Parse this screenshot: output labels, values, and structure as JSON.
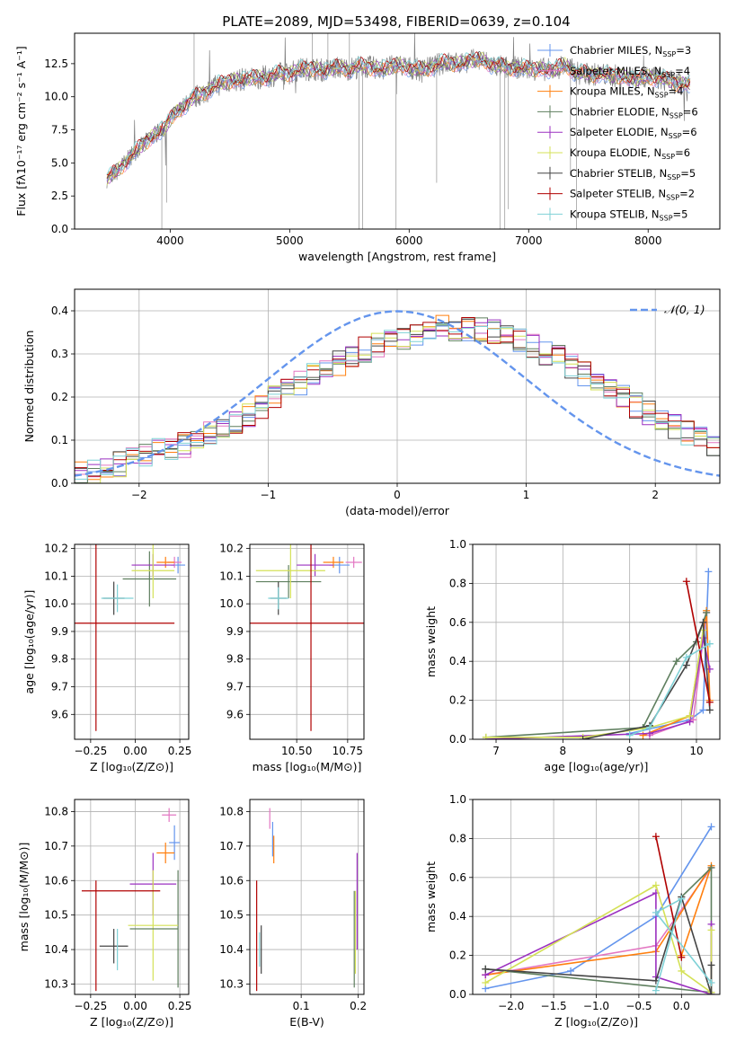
{
  "chart_data": [
    {
      "id": "spectrum",
      "type": "line",
      "title": "PLATE=2089, MJD=53498, FIBERID=0639, z=0.104",
      "xlabel": "wavelength [Angstrom, rest frame]",
      "ylabel": "Flux [fλ10⁻¹⁷ erg cm⁻² s⁻¹ A⁻¹]",
      "xlim": [
        3200,
        8600
      ],
      "ylim": [
        0,
        14.8
      ],
      "xticks": [
        4000,
        5000,
        6000,
        7000,
        8000
      ],
      "yticks": [
        0.0,
        2.5,
        5.0,
        7.5,
        10.0,
        12.5
      ],
      "legend_position": "right",
      "observed": {
        "color": "#808080",
        "x": [
          3470,
          3550,
          3650,
          3750,
          3850,
          3950,
          4000,
          4100,
          4200,
          4300,
          4400,
          4500,
          4600,
          4700,
          4800,
          4900,
          5000,
          5100,
          5200,
          5300,
          5400,
          5500,
          5600,
          5700,
          5800,
          5900,
          6000,
          6100,
          6200,
          6300,
          6400,
          6500,
          6600,
          6700,
          6800,
          6900,
          7000,
          7100,
          7200,
          7300,
          7400,
          7500,
          7600,
          7700,
          7800,
          7900,
          8000,
          8100,
          8200,
          8350
        ],
        "y": [
          3.8,
          4.3,
          5.3,
          6.2,
          7.0,
          7.6,
          8.3,
          9.2,
          9.9,
          10.4,
          10.9,
          11.2,
          11.3,
          11.4,
          11.5,
          11.7,
          11.8,
          12.1,
          12.1,
          12.0,
          12.2,
          12.1,
          12.3,
          12.2,
          12.1,
          12.4,
          12.2,
          12.0,
          12.3,
          12.6,
          12.5,
          12.7,
          12.8,
          12.4,
          12.2,
          12.2,
          12.1,
          12.1,
          12.0,
          12.4,
          11.8,
          11.7,
          11.7,
          11.6,
          11.5,
          11.3,
          11.5,
          11.4,
          11.1,
          10.9
        ]
      },
      "series": [
        {
          "name": "Chabrier MILES, N_SSP=3",
          "color": "#6495ed"
        },
        {
          "name": "Salpeter MILES, N_SSP=4",
          "color": "#e377c2"
        },
        {
          "name": "Kroupa MILES, N_SSP=4",
          "color": "#ff7f0e"
        },
        {
          "name": "Chabrier ELODIE, N_SSP=6",
          "color": "#5f7f5f"
        },
        {
          "name": "Salpeter ELODIE, N_SSP=6",
          "color": "#9b30c0"
        },
        {
          "name": "Kroupa ELODIE, N_SSP=6",
          "color": "#d4e157"
        },
        {
          "name": "Chabrier STELIB, N_SSP=5",
          "color": "#444444"
        },
        {
          "name": "Salpeter STELIB, N_SSP=2",
          "color": "#b00000"
        },
        {
          "name": "Kroupa STELIB, N_SSP=5",
          "color": "#7fd1d6"
        }
      ]
    },
    {
      "id": "residuals",
      "type": "line",
      "xlabel": "(data-model)/error",
      "ylabel": "Normed distribution",
      "xlim": [
        -2.5,
        2.5
      ],
      "ylim": [
        0,
        0.45
      ],
      "xticks": [
        -2,
        -1,
        0,
        1,
        2
      ],
      "yticks": [
        0.0,
        0.1,
        0.2,
        0.3,
        0.4
      ],
      "legend_position": "top-right",
      "gaussian": {
        "name": "𝒩(0, 1)",
        "color": "#6495ed",
        "mean": 0,
        "sigma": 1
      },
      "histogram": {
        "bin_edges_start": -2.5,
        "bin_width": 0.1,
        "base": [
          0.025,
          0.03,
          0.035,
          0.045,
          0.055,
          0.065,
          0.075,
          0.08,
          0.09,
          0.1,
          0.115,
          0.13,
          0.145,
          0.16,
          0.18,
          0.2,
          0.215,
          0.23,
          0.25,
          0.265,
          0.28,
          0.3,
          0.31,
          0.32,
          0.33,
          0.34,
          0.35,
          0.355,
          0.36,
          0.36,
          0.36,
          0.355,
          0.35,
          0.34,
          0.33,
          0.32,
          0.3,
          0.29,
          0.27,
          0.255,
          0.24,
          0.22,
          0.2,
          0.18,
          0.165,
          0.15,
          0.13,
          0.115,
          0.1,
          0.09
        ]
      }
    },
    {
      "id": "age-vs-Z",
      "type": "scatter",
      "xlabel": "Z [log₁₀(Z/Z⊙)]",
      "ylabel": "age  [log₁₀(age/yr)]",
      "xlim": [
        -0.34,
        0.3
      ],
      "ylim": [
        9.51,
        10.215
      ],
      "xticks": [
        -0.25,
        0.0,
        0.25
      ],
      "xticklabels": [
        "−0.25",
        "0.00",
        "0.25"
      ],
      "yticks": [
        9.6,
        9.7,
        9.8,
        9.9,
        10.0,
        10.1,
        10.2
      ],
      "points": [
        {
          "series": "Chabrier MILES",
          "x": 0.24,
          "y": 10.14,
          "xerr": 0.04,
          "yerr": 0.03
        },
        {
          "series": "Salpeter MILES",
          "x": 0.22,
          "y": 10.15,
          "xerr": 0.04,
          "yerr": 0.02
        },
        {
          "series": "Kroupa MILES",
          "x": 0.17,
          "y": 10.15,
          "xerr": 0.05,
          "yerr": 0.02
        },
        {
          "series": "Chabrier ELODIE",
          "x": 0.08,
          "y": 10.09,
          "xerr": 0.15,
          "yerr": 0.1
        },
        {
          "series": "Salpeter ELODIE",
          "x": 0.1,
          "y": 10.14,
          "xerr": 0.12,
          "yerr": 0.04
        },
        {
          "series": "Kroupa ELODIE",
          "x": 0.1,
          "y": 10.12,
          "xerr": 0.12,
          "yerr": 0.1
        },
        {
          "series": "Chabrier STELIB",
          "x": -0.12,
          "y": 10.02,
          "xerr": 0.06,
          "yerr": 0.06
        },
        {
          "series": "Salpeter STELIB",
          "x": -0.22,
          "y": 9.93,
          "xerr": 0.44,
          "yerr": 0.39
        },
        {
          "series": "Kroupa STELIB",
          "x": -0.1,
          "y": 10.02,
          "xerr": 0.09,
          "yerr": 0.05
        }
      ]
    },
    {
      "id": "age-vs-mass",
      "type": "scatter",
      "xlabel": "mass [log₁₀(M/M⊙)]",
      "xlim": [
        10.27,
        10.83
      ],
      "ylim": [
        9.51,
        10.215
      ],
      "xticks": [
        10.5,
        10.75
      ],
      "xticklabels": [
        "10.50",
        "10.75"
      ],
      "yticks": [
        9.6,
        9.7,
        9.8,
        9.9,
        10.0,
        10.1,
        10.2
      ],
      "points": [
        {
          "series": "Chabrier MILES",
          "x": 10.71,
          "y": 10.14,
          "xerr": 0.05,
          "yerr": 0.03
        },
        {
          "series": "Salpeter MILES",
          "x": 10.78,
          "y": 10.15,
          "xerr": 0.04,
          "yerr": 0.02
        },
        {
          "series": "Kroupa MILES",
          "x": 10.68,
          "y": 10.15,
          "xerr": 0.05,
          "yerr": 0.02
        },
        {
          "series": "Chabrier ELODIE",
          "x": 10.46,
          "y": 10.08,
          "xerr": 0.16,
          "yerr": 0.06
        },
        {
          "series": "Salpeter ELODIE",
          "x": 10.59,
          "y": 10.14,
          "xerr": 0.09,
          "yerr": 0.04
        },
        {
          "series": "Kroupa ELODIE",
          "x": 10.47,
          "y": 10.12,
          "xerr": 0.17,
          "yerr": 0.1
        },
        {
          "series": "Chabrier STELIB",
          "x": 10.41,
          "y": 10.02,
          "xerr": 0.04,
          "yerr": 0.06
        },
        {
          "series": "Salpeter STELIB",
          "x": 10.57,
          "y": 9.93,
          "xerr": 0.31,
          "yerr": 0.39
        },
        {
          "series": "Kroupa STELIB",
          "x": 10.41,
          "y": 10.02,
          "xerr": 0.05,
          "yerr": 0.04
        }
      ]
    },
    {
      "id": "weight-vs-age",
      "type": "line",
      "xlabel": "age  [log₁₀(age/yr)]",
      "ylabel": "mass weight",
      "xlim": [
        6.65,
        10.35
      ],
      "ylim": [
        0,
        1.0
      ],
      "xticks": [
        7,
        8,
        9,
        10
      ],
      "yticks": [
        0.0,
        0.2,
        0.4,
        0.6,
        0.8,
        1.0
      ],
      "series": [
        {
          "name": "Chabrier MILES",
          "x": [
            9.0,
            9.9,
            10.1,
            10.18
          ],
          "y": [
            0.03,
            0.1,
            0.15,
            0.86
          ]
        },
        {
          "name": "Salpeter MILES",
          "x": [
            9.3,
            9.95,
            10.15
          ],
          "y": [
            0.02,
            0.1,
            0.65
          ]
        },
        {
          "name": "Kroupa MILES",
          "x": [
            9.2,
            9.9,
            10.15,
            10.2
          ],
          "y": [
            0.02,
            0.12,
            0.66,
            0.2
          ]
        },
        {
          "name": "Chabrier ELODIE",
          "x": [
            6.85,
            9.2,
            9.7,
            10.0,
            10.15
          ],
          "y": [
            0.01,
            0.06,
            0.4,
            0.5,
            0.65
          ]
        },
        {
          "name": "Salpeter ELODIE",
          "x": [
            6.85,
            9.3,
            9.9,
            10.1,
            10.2
          ],
          "y": [
            0.0,
            0.03,
            0.09,
            0.52,
            0.36
          ]
        },
        {
          "name": "Kroupa ELODIE",
          "x": [
            6.85,
            8.3,
            9.3,
            9.9,
            10.1
          ],
          "y": [
            0.01,
            0.01,
            0.06,
            0.12,
            0.56
          ]
        },
        {
          "name": "Chabrier STELIB",
          "x": [
            8.3,
            9.3,
            9.85,
            10.1,
            10.2
          ],
          "y": [
            0.0,
            0.07,
            0.38,
            0.6,
            0.15
          ]
        },
        {
          "name": "Salpeter STELIB",
          "x": [
            9.85,
            10.2
          ],
          "y": [
            0.81,
            0.19
          ]
        },
        {
          "name": "Kroupa STELIB",
          "x": [
            9.0,
            9.3,
            9.85,
            10.2
          ],
          "y": [
            0.02,
            0.06,
            0.42,
            0.49
          ]
        }
      ]
    },
    {
      "id": "mass-vs-Z",
      "type": "scatter",
      "xlabel": "Z [log₁₀(Z/Z⊙)]",
      "ylabel": "mass [log₁₀(M/M⊙)]",
      "xlim": [
        -0.34,
        0.3
      ],
      "ylim": [
        10.27,
        10.835
      ],
      "xticks": [
        -0.25,
        0.0,
        0.25
      ],
      "xticklabels": [
        "−0.25",
        "0.00",
        "0.25"
      ],
      "yticks": [
        10.3,
        10.4,
        10.5,
        10.6,
        10.7,
        10.8
      ],
      "points": [
        {
          "series": "Chabrier MILES",
          "x": 0.22,
          "y": 10.71,
          "xerr": 0.03,
          "yerr": 0.05
        },
        {
          "series": "Salpeter MILES",
          "x": 0.19,
          "y": 10.79,
          "xerr": 0.04,
          "yerr": 0.02
        },
        {
          "series": "Kroupa MILES",
          "x": 0.17,
          "y": 10.68,
          "xerr": 0.05,
          "yerr": 0.03
        },
        {
          "series": "Chabrier ELODIE",
          "x": 0.24,
          "y": 10.46,
          "xerr": 0.0,
          "yerr": 0.17
        },
        {
          "series": "Salpeter ELODIE",
          "x": 0.1,
          "y": 10.59,
          "xerr": 0.13,
          "yerr": 0.09
        },
        {
          "series": "Kroupa ELODIE",
          "x": 0.1,
          "y": 10.47,
          "xerr": 0.14,
          "yerr": 0.16
        },
        {
          "series": "Chabrier STELIB",
          "x": -0.12,
          "y": 10.41,
          "xerr": 0.08,
          "yerr": 0.05
        },
        {
          "series": "Salpeter STELIB",
          "x": -0.08,
          "y": 10.57,
          "xerr": 0.22,
          "yerr": 0.0
        },
        {
          "series": "Kroupa STELIB",
          "x": -0.1,
          "y": 10.4,
          "xerr": 0.0,
          "yerr": 0.06
        }
      ],
      "extra_lines": [
        {
          "series": "Salpeter STELIB",
          "x": -0.22,
          "ylo": 10.28,
          "yhi": 10.6
        },
        {
          "series": "Chabrier ELODIE",
          "xlo": -0.03,
          "xhi": 0.24,
          "y": 10.46
        }
      ]
    },
    {
      "id": "mass-vs-ebv",
      "type": "scatter",
      "xlabel": "E(B-V)",
      "xlim": [
        0.01,
        0.21
      ],
      "ylim": [
        10.27,
        10.835
      ],
      "xticks": [
        0.1,
        0.2
      ],
      "xticklabels": [
        "0.1",
        "0.2"
      ],
      "yticks": [
        10.3,
        10.4,
        10.5,
        10.6,
        10.7,
        10.8
      ],
      "points": [
        {
          "series": "Chabrier MILES",
          "x": 0.05,
          "y": 10.72,
          "xerr": 0,
          "yerr": 0.05
        },
        {
          "series": "Salpeter MILES",
          "x": 0.045,
          "y": 10.78,
          "xerr": 0,
          "yerr": 0.03
        },
        {
          "series": "Kroupa MILES",
          "x": 0.052,
          "y": 10.69,
          "xerr": 0,
          "yerr": 0.04
        },
        {
          "series": "Chabrier ELODIE",
          "x": 0.193,
          "y": 10.43,
          "xerr": 0,
          "yerr": 0.14
        },
        {
          "series": "Salpeter ELODIE",
          "x": 0.198,
          "y": 10.54,
          "xerr": 0,
          "yerr": 0.14
        },
        {
          "series": "Kroupa ELODIE",
          "x": 0.195,
          "y": 10.45,
          "xerr": 0,
          "yerr": 0.12
        },
        {
          "series": "Chabrier STELIB",
          "x": 0.03,
          "y": 10.4,
          "xerr": 0,
          "yerr": 0.07
        },
        {
          "series": "Salpeter STELIB",
          "x": 0.022,
          "y": 10.44,
          "xerr": 0,
          "yerr": 0.16
        },
        {
          "series": "Kroupa STELIB",
          "x": 0.027,
          "y": 10.4,
          "xerr": 0,
          "yerr": 0.05
        }
      ]
    },
    {
      "id": "weight-vs-Z",
      "type": "line",
      "xlabel": "Z [log₁₀(Z/Z⊙)]",
      "ylabel": "mass weight",
      "xlim": [
        -2.45,
        0.45
      ],
      "ylim": [
        0,
        1.0
      ],
      "xticks": [
        -2.0,
        -1.5,
        -1.0,
        -0.5,
        0.0
      ],
      "xticklabels": [
        "−2.0",
        "−1.5",
        "−1.0",
        "−0.5",
        "0.0"
      ],
      "yticks": [
        0.0,
        0.2,
        0.4,
        0.6,
        0.8,
        1.0
      ],
      "series": [
        {
          "name": "Chabrier MILES",
          "x": [
            -2.3,
            -1.3,
            -0.3,
            0.35
          ],
          "y": [
            0.03,
            0.12,
            0.4,
            0.86
          ]
        },
        {
          "name": "Salpeter MILES",
          "x": [
            -2.3,
            -0.3,
            0.35
          ],
          "y": [
            0.1,
            0.25,
            0.65
          ]
        },
        {
          "name": "Kroupa MILES",
          "x": [
            -2.3,
            -0.3,
            0.35,
            0.0
          ],
          "y": [
            0.1,
            0.22,
            0.66,
            0.2
          ]
        },
        {
          "name": "Chabrier ELODIE",
          "x": [
            -2.3,
            0.35,
            0.35,
            0.0
          ],
          "y": [
            0.13,
            0.01,
            0.65,
            0.5
          ]
        },
        {
          "name": "Salpeter ELODIE",
          "x": [
            -2.3,
            -0.3,
            -0.3,
            0.35,
            0.35
          ],
          "y": [
            0.1,
            0.52,
            0.09,
            0.0,
            0.36
          ]
        },
        {
          "name": "Kroupa ELODIE",
          "x": [
            -2.3,
            -0.3,
            0.0,
            0.35,
            0.35
          ],
          "y": [
            0.06,
            0.56,
            0.12,
            0.01,
            0.33
          ]
        },
        {
          "name": "Chabrier STELIB",
          "x": [
            -2.3,
            -0.3,
            0.0,
            0.35,
            0.35
          ],
          "y": [
            0.13,
            0.07,
            0.5,
            0.0,
            0.15
          ]
        },
        {
          "name": "Salpeter STELIB",
          "x": [
            -0.3,
            0.0
          ],
          "y": [
            0.81,
            0.19
          ]
        },
        {
          "name": "Kroupa STELIB",
          "x": [
            -0.3,
            0.0,
            -0.3,
            0.35
          ],
          "y": [
            0.02,
            0.49,
            0.42,
            0.06
          ]
        }
      ]
    }
  ]
}
